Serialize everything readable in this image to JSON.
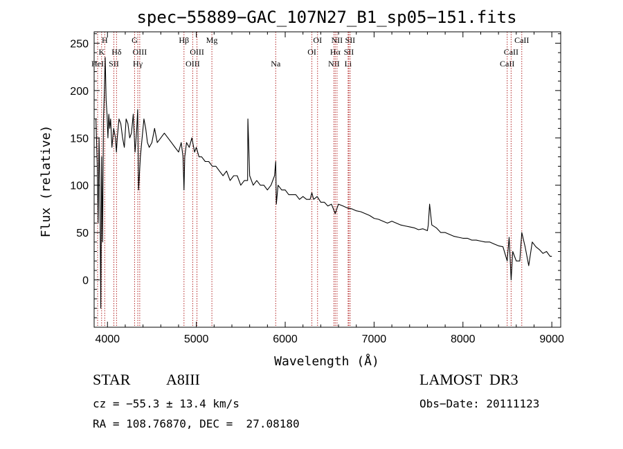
{
  "chart_data": {
    "type": "line",
    "title": "spec−55889−GAC_107N27_B1_sp05−151.fits",
    "xlabel": "Wavelength (Å)",
    "ylabel": "Flux (relative)",
    "xlim": [
      3850,
      9100
    ],
    "ylim": [
      -50,
      262
    ],
    "xticks": [
      {
        "value": 4000,
        "label": "4000"
      },
      {
        "value": 5000,
        "label": "5000"
      },
      {
        "value": 6000,
        "label": "6000"
      },
      {
        "value": 7000,
        "label": "7000"
      },
      {
        "value": 8000,
        "label": "8000"
      },
      {
        "value": 9000,
        "label": "9000"
      }
    ],
    "yticks": [
      {
        "value": 0,
        "label": "0"
      },
      {
        "value": 50,
        "label": "50"
      },
      {
        "value": 100,
        "label": "100"
      },
      {
        "value": 150,
        "label": "150"
      },
      {
        "value": 200,
        "label": "200"
      },
      {
        "value": 250,
        "label": "250"
      }
    ],
    "series": [
      {
        "name": "flux",
        "x": [
          3870,
          3885,
          3895,
          3905,
          3915,
          3925,
          3935,
          3945,
          3955,
          3965,
          3975,
          3985,
          3995,
          4005,
          4015,
          4025,
          4035,
          4050,
          4070,
          4090,
          4101,
          4110,
          4130,
          4150,
          4170,
          4190,
          4210,
          4230,
          4250,
          4270,
          4290,
          4310,
          4330,
          4340,
          4350,
          4370,
          4390,
          4410,
          4430,
          4450,
          4470,
          4500,
          4530,
          4560,
          4600,
          4640,
          4680,
          4720,
          4760,
          4800,
          4830,
          4850,
          4861,
          4870,
          4890,
          4920,
          4950,
          4980,
          5000,
          5030,
          5060,
          5100,
          5140,
          5180,
          5220,
          5260,
          5300,
          5340,
          5380,
          5420,
          5460,
          5500,
          5540,
          5577,
          5580,
          5600,
          5640,
          5680,
          5720,
          5760,
          5800,
          5840,
          5880,
          5893,
          5900,
          5920,
          5960,
          6000,
          6040,
          6080,
          6120,
          6160,
          6200,
          6240,
          6280,
          6300,
          6320,
          6360,
          6400,
          6440,
          6480,
          6520,
          6563,
          6580,
          6600,
          6650,
          6700,
          6750,
          6800,
          6850,
          6900,
          6950,
          7000,
          7050,
          7100,
          7150,
          7200,
          7250,
          7300,
          7350,
          7400,
          7450,
          7500,
          7550,
          7600,
          7610,
          7625,
          7650,
          7700,
          7750,
          7800,
          7850,
          7900,
          7950,
          8000,
          8050,
          8100,
          8150,
          8200,
          8250,
          8300,
          8350,
          8400,
          8450,
          8498,
          8520,
          8542,
          8560,
          8600,
          8640,
          8662,
          8700,
          8740,
          8780,
          8820,
          8860,
          8900,
          8940,
          8980,
          9000
        ],
        "y": [
          170,
          120,
          60,
          150,
          100,
          -30,
          130,
          40,
          170,
          200,
          235,
          190,
          175,
          150,
          175,
          160,
          170,
          140,
          160,
          150,
          135,
          150,
          170,
          165,
          150,
          140,
          170,
          165,
          150,
          155,
          175,
          135,
          160,
          180,
          95,
          130,
          150,
          170,
          160,
          145,
          140,
          145,
          160,
          145,
          150,
          155,
          150,
          145,
          140,
          135,
          145,
          130,
          95,
          130,
          145,
          140,
          150,
          135,
          140,
          130,
          130,
          125,
          125,
          120,
          120,
          115,
          110,
          115,
          105,
          110,
          110,
          100,
          105,
          105,
          170,
          110,
          100,
          105,
          100,
          100,
          95,
          100,
          110,
          125,
          80,
          100,
          95,
          95,
          90,
          90,
          90,
          85,
          88,
          85,
          85,
          92,
          85,
          88,
          82,
          82,
          78,
          80,
          70,
          75,
          80,
          78,
          76,
          75,
          73,
          72,
          70,
          68,
          65,
          64,
          62,
          60,
          62,
          60,
          58,
          57,
          56,
          55,
          53,
          54,
          52,
          58,
          80,
          58,
          55,
          50,
          50,
          48,
          46,
          45,
          44,
          44,
          42,
          42,
          41,
          40,
          40,
          38,
          36,
          35,
          20,
          45,
          0,
          30,
          20,
          20,
          50,
          35,
          15,
          40,
          35,
          32,
          28,
          30,
          25,
          25
        ]
      }
    ],
    "lines": [
      {
        "wl": 3889,
        "label": "HeI",
        "row": 2
      },
      {
        "wl": 3934,
        "label": "K",
        "row": 1
      },
      {
        "wl": 3969,
        "label": "H",
        "row": 0
      },
      {
        "wl": 4072,
        "label": "SII",
        "row": 2
      },
      {
        "wl": 4102,
        "label": "Hδ",
        "row": 1
      },
      {
        "wl": 4305,
        "label": "G",
        "row": 0
      },
      {
        "wl": 4341,
        "label": "Hγ",
        "row": 2
      },
      {
        "wl": 4363,
        "label": "OIII",
        "row": 1
      },
      {
        "wl": 4861,
        "label": "Hβ",
        "row": 0
      },
      {
        "wl": 4959,
        "label": "OIII",
        "row": 2
      },
      {
        "wl": 5007,
        "label": "OIII",
        "row": 1
      },
      {
        "wl": 5175,
        "label": "Mg",
        "row": 0
      },
      {
        "wl": 5893,
        "label": "Na",
        "row": 2
      },
      {
        "wl": 6300,
        "label": "OI",
        "row": 1
      },
      {
        "wl": 6364,
        "label": "OI",
        "row": 0
      },
      {
        "wl": 6548,
        "label": "NII",
        "row": 2
      },
      {
        "wl": 6563,
        "label": "Hα",
        "row": 1
      },
      {
        "wl": 6583,
        "label": "NII",
        "row": 0
      },
      {
        "wl": 6708,
        "label": "Li",
        "row": 2
      },
      {
        "wl": 6716,
        "label": "SII",
        "row": 1
      },
      {
        "wl": 6731,
        "label": "SII",
        "row": 0
      },
      {
        "wl": 8498,
        "label": "CaII",
        "row": 2
      },
      {
        "wl": 8542,
        "label": "CaII",
        "row": 1
      },
      {
        "wl": 8662,
        "label": "CaII",
        "row": 0
      }
    ],
    "line_color": "#b22222"
  },
  "info": {
    "object_class": "STAR",
    "subclass": "A8III",
    "survey": "LAMOST  DR3",
    "cz": "cz = −55.3 ± 13.4 km/s",
    "obs_date": "Obs−Date: 20111123",
    "coords": "RA = 108.76870, DEC =  27.08180"
  }
}
